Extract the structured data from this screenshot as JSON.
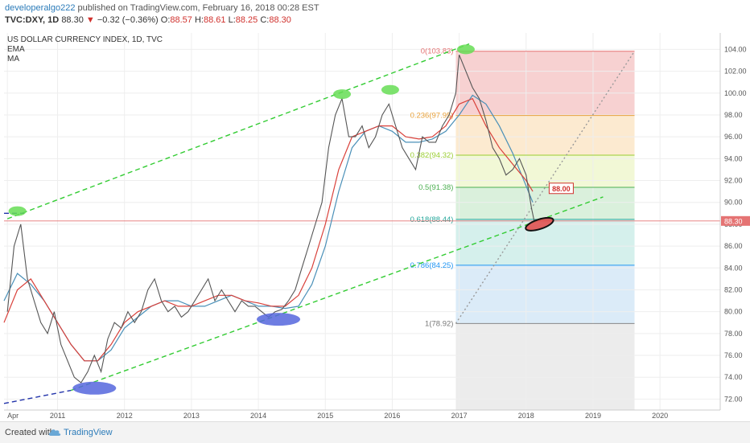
{
  "header": {
    "author": "developeralgo222",
    "published_text": "published on TradingView.com, February 16, 2018 00:28 EST",
    "symbol_line": {
      "symbol": "TVC:DXY, 1D",
      "last": "88.30",
      "change_arrow": "▼",
      "change": "−0.32 (−0.36%)",
      "o_label": "O:",
      "o_value": "88.57",
      "h_label": "H:",
      "h_value": "88.61",
      "l_label": "L:",
      "l_value": "88.25",
      "c_label": "C:",
      "c_value": "88.30"
    }
  },
  "chart_data": {
    "type": "line",
    "title": "US DOLLAR CURRENCY INDEX, 1D, TVC",
    "indicators": [
      "EMA",
      "MA"
    ],
    "ylim": [
      71,
      105.5
    ],
    "y_ticks": [
      "72.00",
      "74.00",
      "76.00",
      "78.00",
      "80.00",
      "82.00",
      "84.00",
      "86.00",
      "88.00",
      "90.00",
      "92.00",
      "94.00",
      "96.00",
      "98.00",
      "100.00",
      "102.00",
      "104.00"
    ],
    "x_tick_labels": [
      "Apr",
      "2011",
      "2012",
      "2013",
      "2014",
      "2015",
      "2016",
      "2017",
      "2018",
      "2019",
      "2020"
    ],
    "x_ticks_year": [
      2010.25,
      2011.0,
      2012.0,
      2013.0,
      2014.0,
      2015.0,
      2016.0,
      2017.0,
      2018.0,
      2019.0,
      2020.0
    ],
    "x_range": [
      2010.2,
      2020.9
    ],
    "price_label": "88.30",
    "last_price": 88.3,
    "target_label": "88.00",
    "target_value": 88.0,
    "fib_levels": [
      {
        "ratio": "0",
        "value": 103.83,
        "label": "0(103.83)",
        "color": "#e57373"
      },
      {
        "ratio": "0.236",
        "value": 97.95,
        "label": "0.236(97.95)",
        "color": "#e8a13a"
      },
      {
        "ratio": "0.382",
        "value": 94.32,
        "label": "0.382(94.32)",
        "color": "#9acd32"
      },
      {
        "ratio": "0.5",
        "value": 91.38,
        "label": "0.5(91.38)",
        "color": "#4caf50"
      },
      {
        "ratio": "0.618",
        "value": 88.44,
        "label": "0.618(88.44)",
        "color": "#26a69a"
      },
      {
        "ratio": "0.786",
        "value": 84.25,
        "label": "0.786(84.25)",
        "color": "#2196f3"
      },
      {
        "ratio": "1",
        "value": 78.92,
        "label": "1(78.92)",
        "color": "#888888"
      }
    ],
    "fib_zone_colors": [
      "#f4c2c2",
      "#fbe3c0",
      "#eef6c8",
      "#cdebd0",
      "#c7ebe6",
      "#cfe4f6",
      "#e6e6e6",
      "#d3d3f5"
    ],
    "fib_x_range": [
      2016.95,
      2019.62
    ],
    "fib_bottom": 71,
    "price_series": {
      "name": "",
      "x": [
        2010.25,
        2010.35,
        2010.45,
        2010.55,
        2010.65,
        2010.75,
        2010.85,
        2010.95,
        2011.05,
        2011.15,
        2011.25,
        2011.35,
        2011.45,
        2011.55,
        2011.65,
        2011.75,
        2011.85,
        2011.95,
        2012.05,
        2012.15,
        2012.25,
        2012.35,
        2012.45,
        2012.55,
        2012.65,
        2012.75,
        2012.85,
        2012.95,
        2013.05,
        2013.15,
        2013.25,
        2013.35,
        2013.45,
        2013.55,
        2013.65,
        2013.75,
        2013.85,
        2013.95,
        2014.05,
        2014.15,
        2014.25,
        2014.35,
        2014.45,
        2014.55,
        2014.65,
        2014.75,
        2014.85,
        2014.95,
        2015.05,
        2015.15,
        2015.25,
        2015.35,
        2015.45,
        2015.55,
        2015.65,
        2015.75,
        2015.85,
        2015.95,
        2016.05,
        2016.15,
        2016.25,
        2016.35,
        2016.45,
        2016.55,
        2016.65,
        2016.75,
        2016.85,
        2016.95,
        2017.0,
        2017.1,
        2017.2,
        2017.3,
        2017.4,
        2017.5,
        2017.6,
        2017.7,
        2017.8,
        2017.9,
        2018.0,
        2018.08,
        2018.12
      ],
      "y": [
        80,
        86,
        88,
        83,
        81,
        79,
        78,
        80,
        77,
        75.5,
        74,
        73.5,
        74.5,
        76,
        74.5,
        77.5,
        79,
        78.5,
        80,
        79,
        80,
        82,
        83,
        81,
        80,
        80.5,
        79.5,
        80,
        81,
        82,
        83,
        81,
        82,
        81,
        80,
        81,
        80.5,
        80.5,
        80,
        79.5,
        80,
        80.2,
        81,
        82,
        84,
        86,
        88,
        90,
        95,
        98,
        99.5,
        96,
        96,
        97,
        95,
        96,
        98,
        99,
        97,
        95,
        94,
        93,
        96,
        95.5,
        95.5,
        97,
        98,
        100,
        103.5,
        102,
        100.5,
        99.5,
        97.5,
        95,
        94,
        92.5,
        93,
        94,
        92.5,
        89.5,
        88.3
      ]
    },
    "ema_series": {
      "name": "EMA",
      "x": [
        2010.2,
        2010.4,
        2010.6,
        2010.8,
        2011.0,
        2011.2,
        2011.4,
        2011.6,
        2011.8,
        2012.0,
        2012.2,
        2012.4,
        2012.6,
        2012.8,
        2013.0,
        2013.2,
        2013.4,
        2013.6,
        2013.8,
        2014.0,
        2014.2,
        2014.4,
        2014.6,
        2014.8,
        2015.0,
        2015.2,
        2015.4,
        2015.6,
        2015.8,
        2016.0,
        2016.2,
        2016.4,
        2016.6,
        2016.8,
        2017.0,
        2017.2,
        2017.4,
        2017.6,
        2017.8,
        2018.0,
        2018.1
      ],
      "y": [
        79,
        82,
        83,
        81,
        79,
        77,
        75.5,
        75.5,
        77,
        79,
        80,
        80.5,
        81,
        80.5,
        80.5,
        81,
        81.5,
        81.5,
        81,
        80.8,
        80.5,
        80.5,
        81.5,
        84,
        88,
        93,
        96,
        96.5,
        97,
        97,
        96,
        95.8,
        96,
        97,
        99,
        99.5,
        97,
        95,
        93.5,
        92,
        91
      ]
    },
    "ma_series": {
      "name": "MA",
      "x": [
        2010.2,
        2010.4,
        2010.6,
        2010.8,
        2011.0,
        2011.2,
        2011.4,
        2011.6,
        2011.8,
        2012.0,
        2012.2,
        2012.4,
        2012.6,
        2012.8,
        2013.0,
        2013.2,
        2013.4,
        2013.6,
        2013.8,
        2014.0,
        2014.2,
        2014.4,
        2014.6,
        2014.8,
        2015.0,
        2015.2,
        2015.4,
        2015.6,
        2015.8,
        2016.0,
        2016.2,
        2016.4,
        2016.6,
        2016.8,
        2017.0,
        2017.2,
        2017.4,
        2017.6,
        2017.8,
        2018.0,
        2018.1
      ],
      "y": [
        81,
        83.5,
        82.5,
        81,
        79,
        77,
        75.5,
        75.5,
        76.5,
        78.5,
        79.5,
        80.5,
        81,
        81,
        80.5,
        80.5,
        81,
        81.5,
        81,
        80.5,
        80.5,
        80.3,
        80.5,
        82.5,
        86,
        91,
        95,
        96.5,
        97,
        96.5,
        95.5,
        95.5,
        95.8,
        96.5,
        98,
        99.8,
        99,
        97,
        94.5,
        91.5,
        90
      ]
    },
    "trendlines": [
      {
        "from": [
          2010.25,
          88.5
        ],
        "to": [
          2017.15,
          104.5
        ],
        "color": "#33cc33",
        "style": "dashed"
      },
      {
        "from": [
          2011.2,
          72.8
        ],
        "to": [
          2019.15,
          90.5
        ],
        "color": "#33cc33",
        "style": "dashed"
      },
      {
        "from": [
          2016.95,
          78.92
        ],
        "to": [
          2019.62,
          103.83
        ],
        "color": "#999999",
        "style": "dotted"
      },
      {
        "from": [
          2010.2,
          71.6
        ],
        "to": [
          2011.2,
          72.8
        ],
        "color": "#2233aa",
        "style": "dashed"
      },
      {
        "from": [
          2010.2,
          89.0
        ],
        "to": [
          2010.5,
          89.0
        ],
        "color": "#2233aa",
        "style": "dashed"
      }
    ],
    "highlights": [
      {
        "x": 2010.4,
        "y": 89.2,
        "color": "#66dd55",
        "kind": "peak"
      },
      {
        "x": 2015.25,
        "y": 99.9,
        "color": "#66dd55",
        "kind": "peak"
      },
      {
        "x": 2015.97,
        "y": 100.3,
        "color": "#66dd55",
        "kind": "peak"
      },
      {
        "x": 2017.1,
        "y": 104.0,
        "color": "#66dd55",
        "kind": "peak"
      },
      {
        "x": 2011.55,
        "y": 73.0,
        "color": "#5566dd",
        "kind": "trough"
      },
      {
        "x": 2014.3,
        "y": 79.3,
        "color": "#5566dd",
        "kind": "trough"
      },
      {
        "x": 2018.2,
        "y": 88.0,
        "color": "#e04848",
        "kind": "target"
      }
    ]
  },
  "footer": {
    "created_with": "Created with",
    "brand": "TradingView",
    "logo_icon": "tradingview-cloud-icon"
  }
}
